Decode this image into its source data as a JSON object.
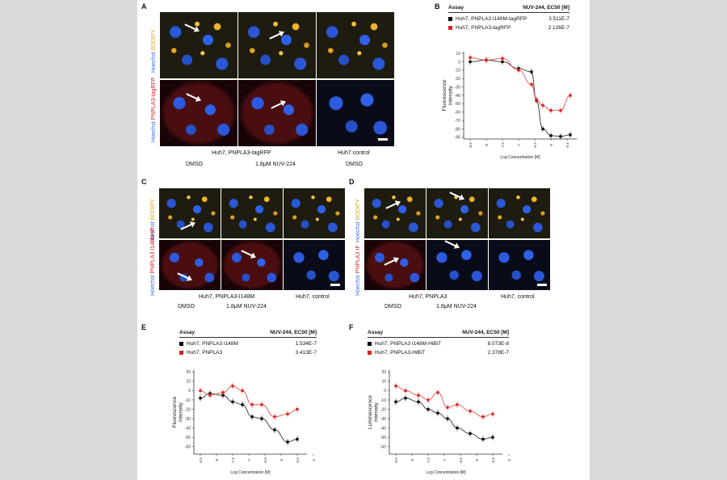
{
  "panels": {
    "A": {
      "label": "A",
      "side_top": [
        "Hoechst",
        "BODIPY"
      ],
      "side_bottom": [
        "Hoechst",
        "PNPLA3-tagRFP"
      ],
      "cell_label": "Huh7, PNPLA3-tagRFP",
      "control_label": "Huh7 control",
      "cond1": "DMSO",
      "cond2": "1.8μM NUV-224",
      "cond3": "DMSO"
    },
    "C": {
      "label": "C",
      "side_top": [
        "Hoechst",
        "BODIPY"
      ],
      "side_bottom": [
        "Hoechst",
        "PNPLA3 I148M IF"
      ],
      "cell_label": "Huh7, PNPLA3-I148M",
      "control_label": "Huh7, control",
      "cond1": "DMSO",
      "cond2": "1.8μM NUV-224"
    },
    "D": {
      "label": "D",
      "side_top": [
        "Hoechst",
        "BODIPY"
      ],
      "side_bottom": [
        "Hoechst",
        "PNPLA3 IF"
      ],
      "cell_label": "Huh7, PNPLA3",
      "control_label": "Huh7, control",
      "cond1": "DMSO",
      "cond2": "1.8μM NUV-224"
    }
  },
  "colors": {
    "black_series": "#000000",
    "red_series": "#e0201b",
    "fit_black": "#333333",
    "fit_red": "#e05050"
  },
  "chart_data": [
    {
      "panel": "B",
      "type": "scatter",
      "table": {
        "col1": "Assay",
        "col2": "NUV-244, EC50 [M]",
        "rows": [
          {
            "assay": "Huh7, PNPLA3 I148M-tagRFP",
            "ec50": "3.511E-7"
          },
          {
            "assay": "Huh7, PNPLA3-tagRFP",
            "ec50": "2.126E-7"
          }
        ]
      },
      "xlabel": "Log Concentration [M]",
      "ylabel": "Fluorescence intensity",
      "xlim": [
        -8.7,
        -5.2
      ],
      "ylim": [
        -92,
        12
      ],
      "xticks": [
        -8.5,
        -8,
        -7.5,
        -7,
        -6.5,
        -6,
        -5.5,
        -5
      ],
      "yticks": [
        10,
        0,
        -10,
        -20,
        -30,
        -40,
        -50,
        -60,
        -70,
        -80,
        -90
      ],
      "series": [
        {
          "color": "black",
          "x": [
            -8.5,
            -8,
            -7.5,
            -7,
            -6.6,
            -6.45,
            -6.25,
            -6,
            -5.7,
            -5.4
          ],
          "y": [
            0,
            2,
            0,
            -8,
            -12,
            -46,
            -80,
            -88,
            -89,
            -87
          ]
        },
        {
          "color": "red",
          "x": [
            -8.5,
            -8,
            -7.5,
            -7,
            -6.6,
            -6.45,
            -6.25,
            -6,
            -5.7,
            -5.4
          ],
          "y": [
            5,
            2,
            4,
            -10,
            -27,
            -45,
            -52,
            -58,
            -58,
            -40
          ]
        }
      ]
    },
    {
      "panel": "E",
      "type": "scatter",
      "table": {
        "col1": "Assay",
        "col2": "NUV-244, EC50 [M]",
        "rows": [
          {
            "assay": "Huh7, PNPLA3 I148M",
            "ec50": "1.534E-7"
          },
          {
            "assay": "Huh7, PNPLA3",
            "ec50": "3.413E-7"
          }
        ]
      },
      "xlabel": "Log Concentration [M]",
      "ylabel": "Fluorescence intensity",
      "xlim": [
        -8.7,
        -5.2
      ],
      "ylim": [
        -68,
        22
      ],
      "xticks": [
        -8.5,
        -8,
        -7.5,
        -7,
        -6.5,
        -6,
        -5.5,
        -5
      ],
      "yticks": [
        20,
        10,
        0,
        -10,
        -20,
        -30,
        -40,
        -50,
        -60
      ],
      "series": [
        {
          "color": "black",
          "x": [
            -8.5,
            -8.2,
            -7.8,
            -7.5,
            -7.2,
            -6.9,
            -6.6,
            -6.2,
            -5.8,
            -5.5
          ],
          "y": [
            -8,
            -3,
            -5,
            -12,
            -15,
            -28,
            -30,
            -42,
            -55,
            -52
          ]
        },
        {
          "color": "red",
          "x": [
            -8.5,
            -8.2,
            -7.8,
            -7.5,
            -7.2,
            -6.9,
            -6.6,
            -6.2,
            -5.8,
            -5.5
          ],
          "y": [
            0,
            -5,
            -2,
            5,
            0,
            -15,
            -15,
            -28,
            -25,
            -20
          ]
        }
      ]
    },
    {
      "panel": "F",
      "type": "scatter",
      "table": {
        "col1": "Assay",
        "col2": "NUV-244, EC50 [M]",
        "rows": [
          {
            "assay": "Huh7, PNPLA3 I148M-HiBiT",
            "ec50": "8.073E-8"
          },
          {
            "assay": "Huh7, PNPLA3-HiBiT",
            "ec50": "2.378E-7"
          }
        ]
      },
      "xlabel": "Log Concentration [M]",
      "ylabel": "Luminescence intensity",
      "xlim": [
        -8.7,
        -5.2
      ],
      "ylim": [
        -68,
        22
      ],
      "xticks": [
        -8.5,
        -8,
        -7.5,
        -7,
        -6.5,
        -6,
        -5.5,
        -5
      ],
      "yticks": [
        20,
        10,
        0,
        -10,
        -20,
        -30,
        -40,
        -50,
        -60
      ],
      "series": [
        {
          "color": "black",
          "x": [
            -8.5,
            -8.2,
            -7.8,
            -7.5,
            -7.2,
            -6.9,
            -6.6,
            -6.2,
            -5.8,
            -5.5
          ],
          "y": [
            -12,
            -8,
            -12,
            -20,
            -24,
            -30,
            -40,
            -46,
            -52,
            -50
          ]
        },
        {
          "color": "red",
          "x": [
            -8.5,
            -8.2,
            -7.8,
            -7.5,
            -7.2,
            -6.9,
            -6.6,
            -6.2,
            -5.8,
            -5.5
          ],
          "y": [
            5,
            0,
            -5,
            -10,
            -2,
            -18,
            -15,
            -22,
            -28,
            -25
          ]
        }
      ]
    }
  ]
}
